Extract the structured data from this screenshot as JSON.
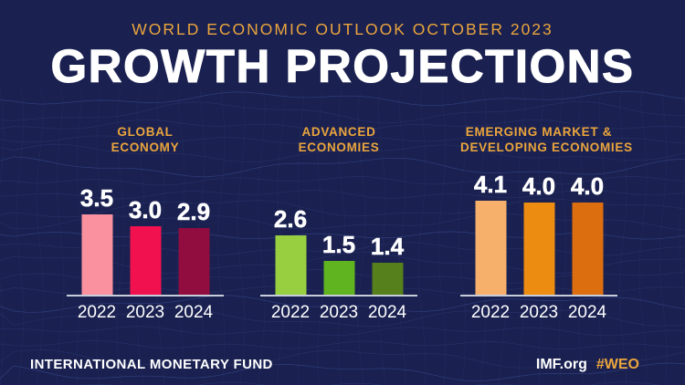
{
  "page": {
    "kicker": "WORLD ECONOMIC OUTLOOK OCTOBER 2023",
    "title": "GROWTH PROJECTIONS",
    "footer_left": "INTERNATIONAL MONETARY FUND",
    "footer_site": "IMF.org",
    "footer_hashtag": "#WEO"
  },
  "colors": {
    "background": "#1A2150",
    "mesh_line": "#4659A8",
    "gold": "#EBA53D",
    "baseline": "#C8CDDB",
    "text_white": "#FFFFFF"
  },
  "chart_data": {
    "type": "bar",
    "categories": [
      "2022",
      "2023",
      "2024"
    ],
    "value_suffix": "",
    "value_labels": true,
    "grid": false,
    "legend": false,
    "ylim": [
      0,
      4.5
    ],
    "groups": [
      {
        "name": "GLOBAL ECONOMY",
        "label_lines": [
          "GLOBAL",
          "ECONOMY"
        ],
        "values": [
          3.5,
          3.0,
          2.9
        ],
        "bar_colors": [
          "#F9919F",
          "#F2114F",
          "#910C3F"
        ]
      },
      {
        "name": "ADVANCED ECONOMIES",
        "label_lines": [
          "ADVANCED",
          "ECONOMIES"
        ],
        "values": [
          2.6,
          1.5,
          1.4
        ],
        "bar_colors": [
          "#98CF40",
          "#5FB420",
          "#55801C"
        ]
      },
      {
        "name": "EMERGING MARKET & DEVELOPING ECONOMIES",
        "label_lines": [
          "EMERGING MARKET &",
          "DEVELOPING ECONOMIES"
        ],
        "values": [
          4.1,
          4.0,
          4.0
        ],
        "bar_colors": [
          "#F7B06C",
          "#EC8C10",
          "#DC6E10"
        ]
      }
    ]
  }
}
